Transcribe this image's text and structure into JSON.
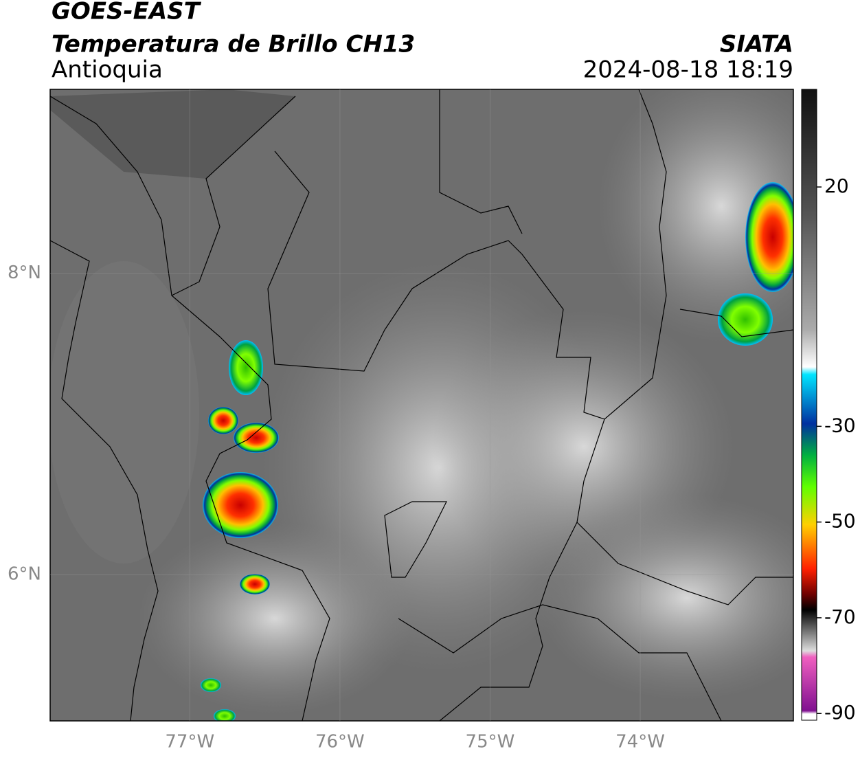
{
  "header": {
    "title": "GOES-EAST",
    "subtitle": "Temperatura de Brillo CH13",
    "region": "Antioquia",
    "source": "SIATA",
    "timestamp": "2024-08-18 18:19"
  },
  "map": {
    "xlim": [
      -77.93,
      -72.98
    ],
    "ylim": [
      5.03,
      9.22
    ],
    "xticks": [
      {
        "value": -77,
        "label": "77°W"
      },
      {
        "value": -76,
        "label": "76°W"
      },
      {
        "value": -75,
        "label": "75°W"
      },
      {
        "value": -74,
        "label": "74°W"
      }
    ],
    "yticks": [
      {
        "value": 8,
        "label": "8°N"
      },
      {
        "value": 6,
        "label": "6°N"
      }
    ],
    "grid": true
  },
  "colorbar": {
    "range": [
      -91.4,
      40.4
    ],
    "ticks": [
      20,
      -30,
      -50,
      -70,
      -90
    ]
  }
}
